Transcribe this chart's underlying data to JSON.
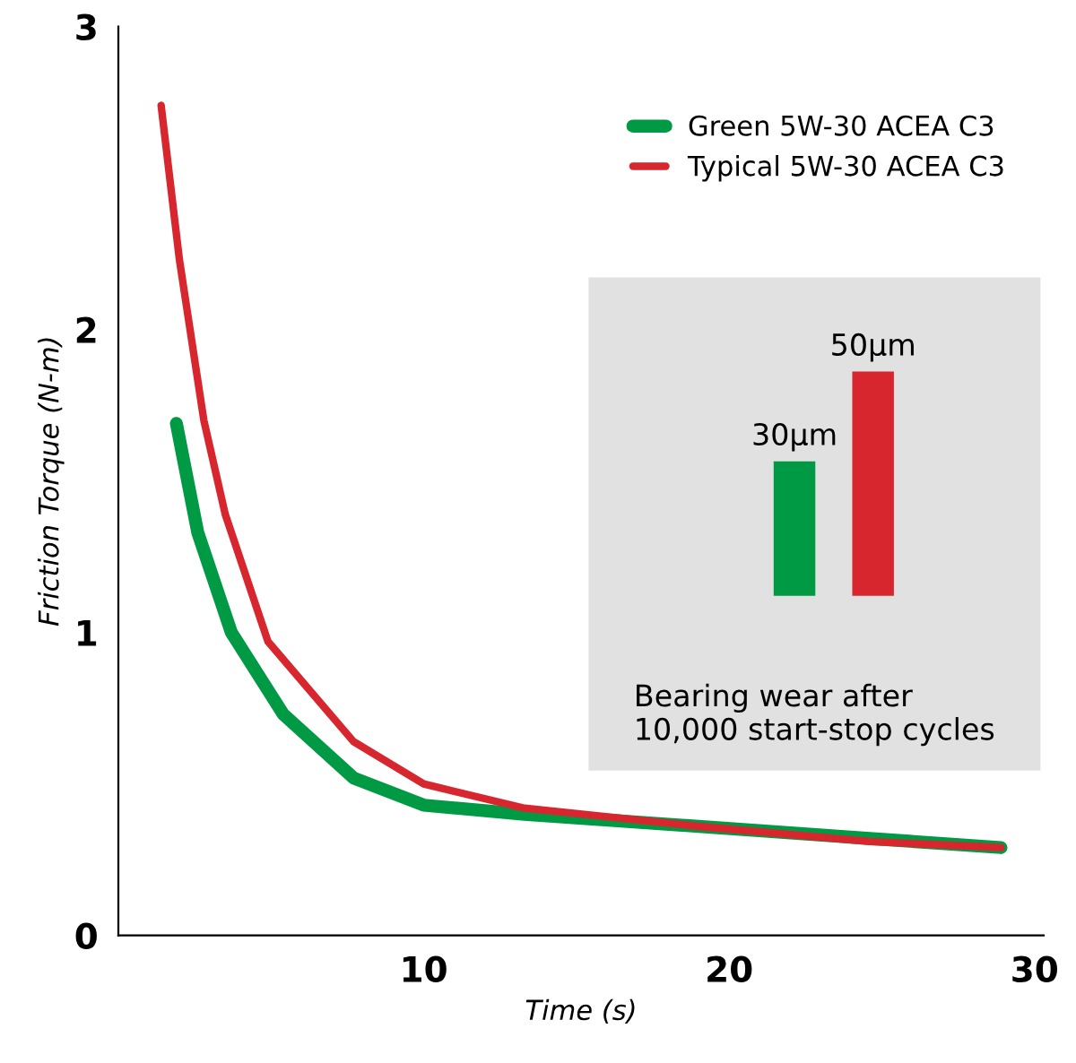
{
  "chart_data": [
    {
      "type": "line",
      "xlabel": "Time (s)",
      "ylabel": "Friction Torque (N-m)",
      "xlim": [
        0,
        30.3
      ],
      "ylim": [
        0,
        3
      ],
      "xticks": [
        10,
        20,
        30
      ],
      "yticks": [
        0,
        1,
        2,
        3
      ],
      "grid": false,
      "legend": "top right",
      "marker": "none",
      "line_style": "solid",
      "series": [
        {
          "name": "Green 5W-30 ACEA C3",
          "color": "#009a44",
          "x": [
            1.9,
            2.6,
            3.7,
            5.4,
            7.7,
            10,
            13.3,
            19,
            24.6,
            28.9
          ],
          "values": [
            1.69,
            1.33,
            1.0,
            0.73,
            0.52,
            0.43,
            0.4,
            0.36,
            0.32,
            0.29
          ]
        },
        {
          "name": "Typical 5W-30 ACEA C3",
          "color": "#d7262e",
          "x": [
            1.4,
            2.0,
            2.8,
            3.5,
            4.9,
            7.7,
            10,
            13.3,
            19,
            24.6,
            28.9
          ],
          "values": [
            2.74,
            2.23,
            1.7,
            1.39,
            0.97,
            0.64,
            0.5,
            0.42,
            0.36,
            0.31,
            0.29
          ]
        }
      ]
    },
    {
      "type": "bar",
      "categories": [
        null,
        null
      ],
      "values": [
        30,
        50
      ],
      "colors": [
        "#009a44",
        "#d7262e"
      ],
      "value_labels": [
        "30µm",
        "50µm"
      ],
      "annotations": [
        "Bearing wear after\n10,000 start-stop cycles"
      ]
    }
  ]
}
